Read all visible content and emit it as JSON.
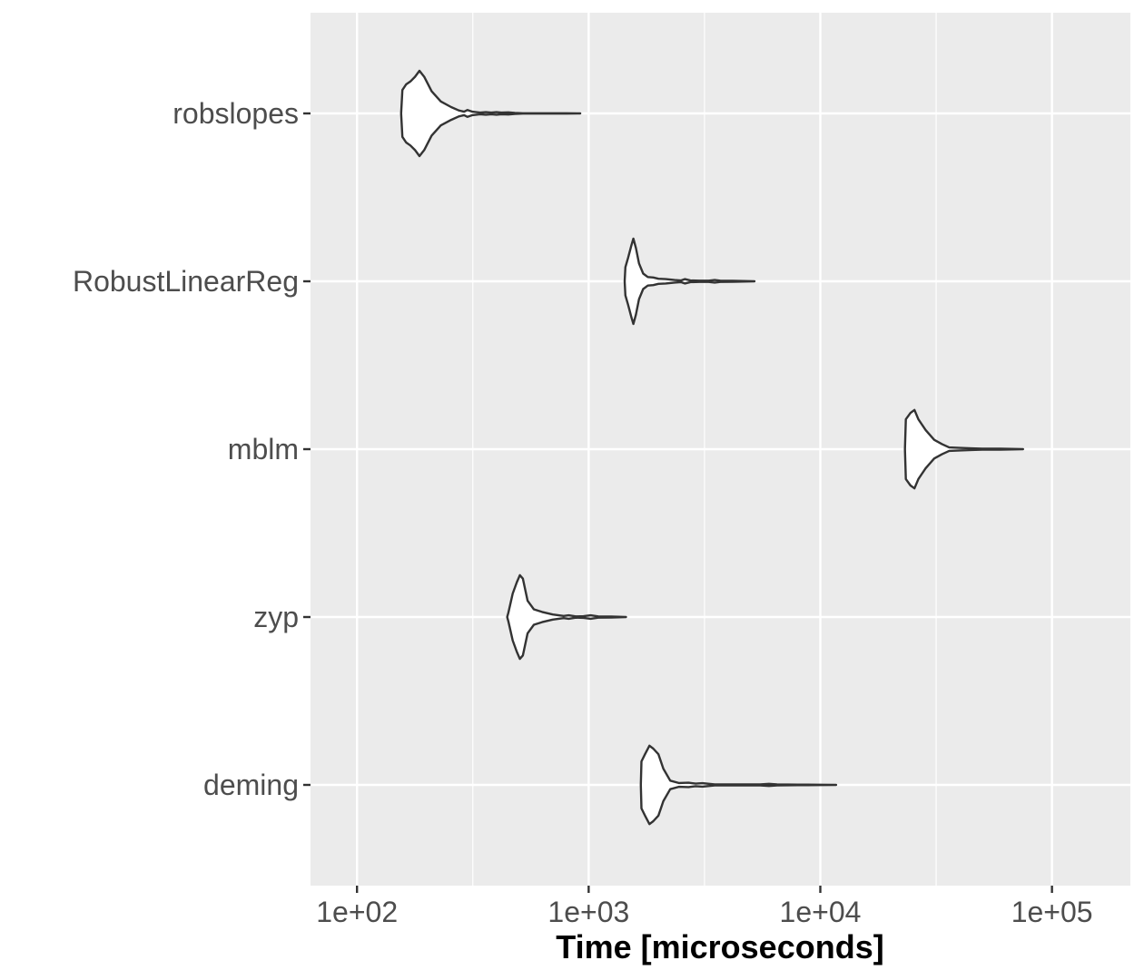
{
  "chart_data": {
    "type": "violin",
    "orientation": "horizontal",
    "title": "",
    "xlabel": "Time [microseconds]",
    "ylabel": "",
    "x_scale": "log10",
    "xlim": [
      63,
      218000
    ],
    "x_ticks": [
      {
        "value": 100,
        "label": "1e+02"
      },
      {
        "value": 1000,
        "label": "1e+03"
      },
      {
        "value": 10000,
        "label": "1e+04"
      },
      {
        "value": 100000,
        "label": "1e+05"
      }
    ],
    "categories": [
      "robslopes",
      "RobustLinearReg",
      "mblm",
      "zyp",
      "deming"
    ],
    "grid": true,
    "legend": "none",
    "colors": {
      "panel": "#ebebeb",
      "grid": "#ffffff",
      "violin_fill": "#ffffff",
      "violin_stroke": "#333333",
      "tick": "#333333"
    },
    "series": [
      {
        "category": "robslopes",
        "density": [
          [
            155,
            0.0
          ],
          [
            157,
            0.55
          ],
          [
            163,
            0.68
          ],
          [
            170,
            0.75
          ],
          [
            178,
            0.86
          ],
          [
            186,
            1.0
          ],
          [
            195,
            0.86
          ],
          [
            210,
            0.52
          ],
          [
            230,
            0.28
          ],
          [
            255,
            0.15
          ],
          [
            275,
            0.07
          ],
          [
            290,
            0.04
          ],
          [
            300,
            0.08
          ],
          [
            315,
            0.04
          ],
          [
            340,
            0.02
          ],
          [
            360,
            0.03
          ],
          [
            380,
            0.02
          ],
          [
            400,
            0.03
          ],
          [
            420,
            0.02
          ],
          [
            450,
            0.025
          ],
          [
            480,
            0.01
          ],
          [
            520,
            0.005
          ],
          [
            600,
            0.005
          ],
          [
            700,
            0.004
          ],
          [
            800,
            0.004
          ],
          [
            920,
            0.0
          ]
        ]
      },
      {
        "category": "RobustLinearReg",
        "density": [
          [
            1430,
            0.0
          ],
          [
            1440,
            0.33
          ],
          [
            1480,
            0.55
          ],
          [
            1530,
            0.85
          ],
          [
            1560,
            1.0
          ],
          [
            1600,
            0.78
          ],
          [
            1650,
            0.42
          ],
          [
            1720,
            0.18
          ],
          [
            1800,
            0.1
          ],
          [
            1900,
            0.09
          ],
          [
            2000,
            0.06
          ],
          [
            2150,
            0.05
          ],
          [
            2350,
            0.03
          ],
          [
            2500,
            0.02
          ],
          [
            2600,
            0.05
          ],
          [
            2750,
            0.02
          ],
          [
            3000,
            0.015
          ],
          [
            3300,
            0.015
          ],
          [
            3500,
            0.03
          ],
          [
            3700,
            0.015
          ],
          [
            4200,
            0.01
          ],
          [
            5200,
            0.0
          ]
        ]
      },
      {
        "category": "mblm",
        "density": [
          [
            23200,
            0.0
          ],
          [
            23400,
            0.7
          ],
          [
            24500,
            0.85
          ],
          [
            25500,
            0.92
          ],
          [
            26500,
            0.7
          ],
          [
            28500,
            0.45
          ],
          [
            31000,
            0.22
          ],
          [
            33500,
            0.12
          ],
          [
            36000,
            0.04
          ],
          [
            40000,
            0.03
          ],
          [
            45000,
            0.02
          ],
          [
            50000,
            0.01
          ],
          [
            60000,
            0.01
          ],
          [
            75000,
            0.0
          ]
        ]
      },
      {
        "category": "zyp",
        "density": [
          [
            445,
            0.0
          ],
          [
            450,
            0.1
          ],
          [
            470,
            0.55
          ],
          [
            490,
            0.82
          ],
          [
            505,
            0.98
          ],
          [
            520,
            0.9
          ],
          [
            545,
            0.38
          ],
          [
            580,
            0.18
          ],
          [
            630,
            0.12
          ],
          [
            700,
            0.06
          ],
          [
            780,
            0.025
          ],
          [
            820,
            0.04
          ],
          [
            880,
            0.015
          ],
          [
            950,
            0.02
          ],
          [
            1020,
            0.04
          ],
          [
            1100,
            0.015
          ],
          [
            1250,
            0.01
          ],
          [
            1450,
            0.0
          ]
        ]
      },
      {
        "category": "deming",
        "density": [
          [
            1680,
            0.0
          ],
          [
            1690,
            0.55
          ],
          [
            1750,
            0.72
          ],
          [
            1830,
            0.92
          ],
          [
            1900,
            0.85
          ],
          [
            2000,
            0.72
          ],
          [
            2100,
            0.38
          ],
          [
            2250,
            0.1
          ],
          [
            2450,
            0.045
          ],
          [
            2700,
            0.05
          ],
          [
            2900,
            0.03
          ],
          [
            3100,
            0.04
          ],
          [
            3500,
            0.01
          ],
          [
            4500,
            0.01
          ],
          [
            5500,
            0.012
          ],
          [
            6000,
            0.025
          ],
          [
            6500,
            0.01
          ],
          [
            8000,
            0.006
          ],
          [
            10000,
            0.004
          ],
          [
            11700,
            0.0
          ]
        ]
      }
    ]
  }
}
